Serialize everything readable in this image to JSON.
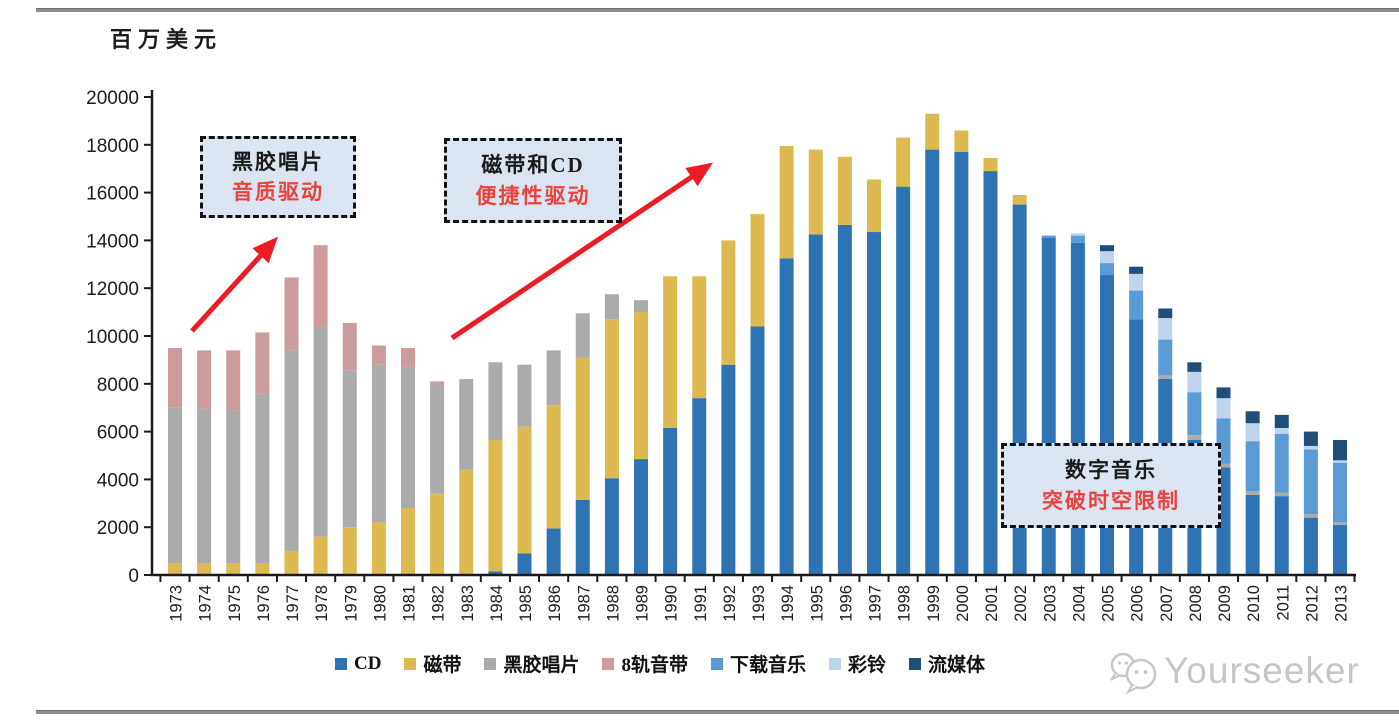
{
  "y_axis": {
    "title": "百万美元",
    "tick_labels": [
      "0",
      "2000",
      "4000",
      "6000",
      "8000",
      "10000",
      "12000",
      "14000",
      "16000",
      "18000",
      "20000"
    ]
  },
  "chart_data": {
    "type": "bar",
    "stacked": true,
    "unit_label": "百万美元",
    "grid": false,
    "legend_position": "bottom",
    "ylim": [
      0,
      20000
    ],
    "ytick_step": 2000,
    "categories": [
      "1973",
      "1974",
      "1975",
      "1976",
      "1977",
      "1978",
      "1979",
      "1980",
      "1981",
      "1982",
      "1983",
      "1984",
      "1985",
      "1986",
      "1987",
      "1988",
      "1989",
      "1990",
      "1991",
      "1992",
      "1993",
      "1994",
      "1995",
      "1996",
      "1997",
      "1998",
      "1999",
      "2000",
      "2001",
      "2002",
      "2003",
      "2004",
      "2005",
      "2006",
      "2007",
      "2008",
      "2009",
      "2010",
      "2011",
      "2012",
      "2013"
    ],
    "series": [
      {
        "name": "CD",
        "color": "#2E74B5",
        "values": [
          0,
          0,
          0,
          0,
          0,
          0,
          0,
          0,
          0,
          0,
          0,
          150,
          900,
          1950,
          3150,
          4050,
          4850,
          6150,
          7400,
          8800,
          10400,
          13250,
          14250,
          14650,
          14350,
          16250,
          17800,
          17700,
          16900,
          15500,
          14100,
          13900,
          12550,
          10700,
          8200,
          5650,
          4500,
          3350,
          3300,
          2400,
          2100
        ]
      },
      {
        "name": "磁带",
        "color": "#DCBA50",
        "values": [
          500,
          500,
          500,
          500,
          1000,
          1600,
          2000,
          2200,
          2800,
          3400,
          4400,
          5500,
          5300,
          5150,
          5950,
          6650,
          6150,
          6350,
          5100,
          5200,
          4700,
          4700,
          3550,
          2850,
          2200,
          2050,
          1500,
          900,
          550,
          400,
          0,
          0,
          0,
          0,
          0,
          0,
          0,
          0,
          0,
          0,
          0
        ]
      },
      {
        "name": "黑胶唱片",
        "color": "#ABABAB",
        "values": [
          6500,
          6450,
          6400,
          7100,
          8400,
          8800,
          6550,
          6600,
          5900,
          4550,
          3800,
          3250,
          2600,
          2300,
          1850,
          1050,
          500,
          0,
          0,
          0,
          0,
          0,
          0,
          0,
          0,
          0,
          0,
          0,
          0,
          0,
          0,
          0,
          0,
          0,
          150,
          200,
          150,
          150,
          150,
          150,
          100
        ]
      },
      {
        "name": "8轨音带",
        "color": "#CC9C9C",
        "values": [
          2500,
          2450,
          2500,
          2550,
          3050,
          3400,
          2000,
          800,
          800,
          150,
          0,
          0,
          0,
          0,
          0,
          0,
          0,
          0,
          0,
          0,
          0,
          0,
          0,
          0,
          0,
          0,
          0,
          0,
          0,
          0,
          0,
          0,
          0,
          0,
          0,
          0,
          0,
          0,
          0,
          0,
          0
        ]
      },
      {
        "name": "下载音乐",
        "color": "#5B9BD5",
        "values": [
          0,
          0,
          0,
          0,
          0,
          0,
          0,
          0,
          0,
          0,
          0,
          0,
          0,
          0,
          0,
          0,
          0,
          0,
          0,
          0,
          0,
          0,
          0,
          0,
          0,
          0,
          0,
          0,
          0,
          0,
          100,
          300,
          500,
          1200,
          1500,
          1800,
          1900,
          2100,
          2450,
          2700,
          2500
        ]
      },
      {
        "name": "彩铃",
        "color": "#BFD3EA",
        "values": [
          0,
          0,
          0,
          0,
          0,
          0,
          0,
          0,
          0,
          0,
          0,
          0,
          0,
          0,
          0,
          0,
          0,
          0,
          0,
          0,
          0,
          0,
          0,
          0,
          0,
          0,
          0,
          0,
          0,
          0,
          0,
          100,
          500,
          700,
          900,
          850,
          850,
          750,
          250,
          150,
          100
        ]
      },
      {
        "name": "流媒体",
        "color": "#1F4E79",
        "values": [
          0,
          0,
          0,
          0,
          0,
          0,
          0,
          0,
          0,
          0,
          0,
          0,
          0,
          0,
          0,
          0,
          0,
          0,
          0,
          0,
          0,
          0,
          0,
          0,
          0,
          0,
          0,
          0,
          0,
          0,
          0,
          0,
          250,
          300,
          400,
          400,
          450,
          500,
          550,
          600,
          850
        ]
      }
    ]
  },
  "annotations": [
    {
      "line1": "黑胶唱片",
      "line2": "音质驱动"
    },
    {
      "line1": "磁带和CD",
      "line2": "便捷性驱动"
    },
    {
      "line1": "数字音乐",
      "line2": "突破时空限制"
    }
  ],
  "colors": {
    "annotation_fill": "#DBE5F1",
    "annotation_red_text": "#E8433F",
    "arrow_red": "#EC1C24",
    "axis": "#1A1A1A",
    "divider_gray": "#8E8E8E",
    "watermark_gray": "#C6C6C6"
  },
  "watermark": {
    "text": "Yourseeker",
    "icon": "wechat-bubbles-icon"
  }
}
